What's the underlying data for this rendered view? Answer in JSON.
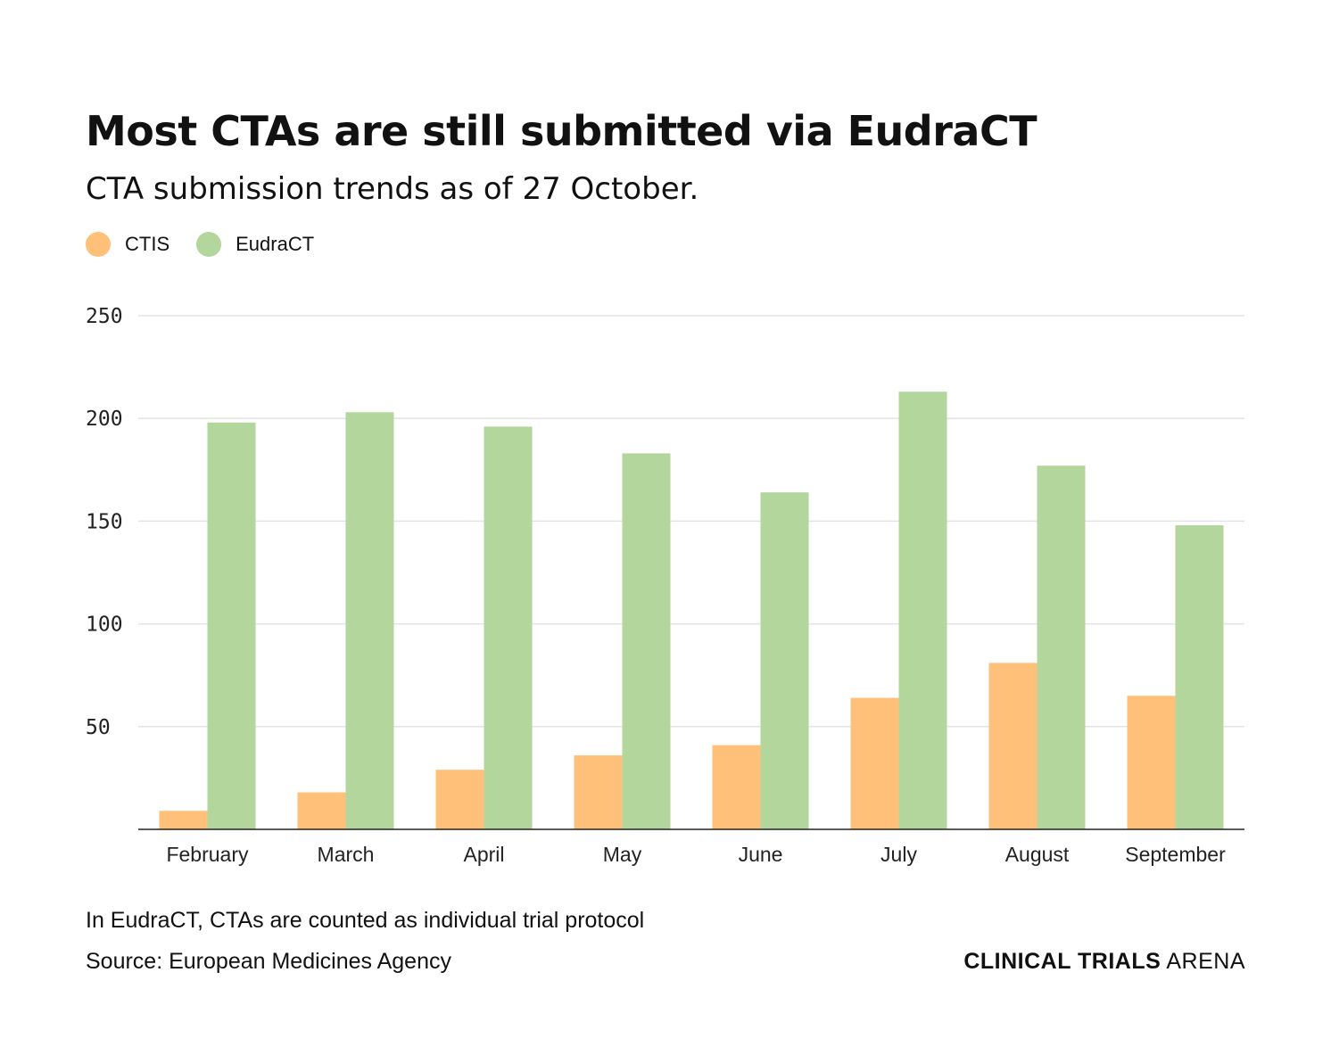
{
  "chart_data": {
    "type": "bar",
    "title": "Most CTAs are still submitted via EudraCT",
    "subtitle": "CTA submission trends as of 27 October.",
    "categories": [
      "February",
      "March",
      "April",
      "May",
      "June",
      "July",
      "August",
      "September"
    ],
    "series": [
      {
        "name": "CTIS",
        "color": "#ffc07a",
        "values": [
          9,
          18,
          29,
          36,
          41,
          64,
          81,
          65
        ]
      },
      {
        "name": "EudraCT",
        "color": "#b3d69d",
        "values": [
          198,
          203,
          196,
          183,
          164,
          213,
          177,
          148
        ]
      }
    ],
    "ylim": [
      0,
      250
    ],
    "yticks": [
      50,
      100,
      150,
      200,
      250
    ],
    "grid": true,
    "legend": "top-left",
    "xlabel": "",
    "ylabel": ""
  },
  "footer": {
    "note": "In EudraCT, CTAs are counted as individual trial protocol",
    "source": "Source: European Medicines Agency",
    "logo_bold": "CLINICAL TRIALS",
    "logo_light": "ARENA"
  }
}
